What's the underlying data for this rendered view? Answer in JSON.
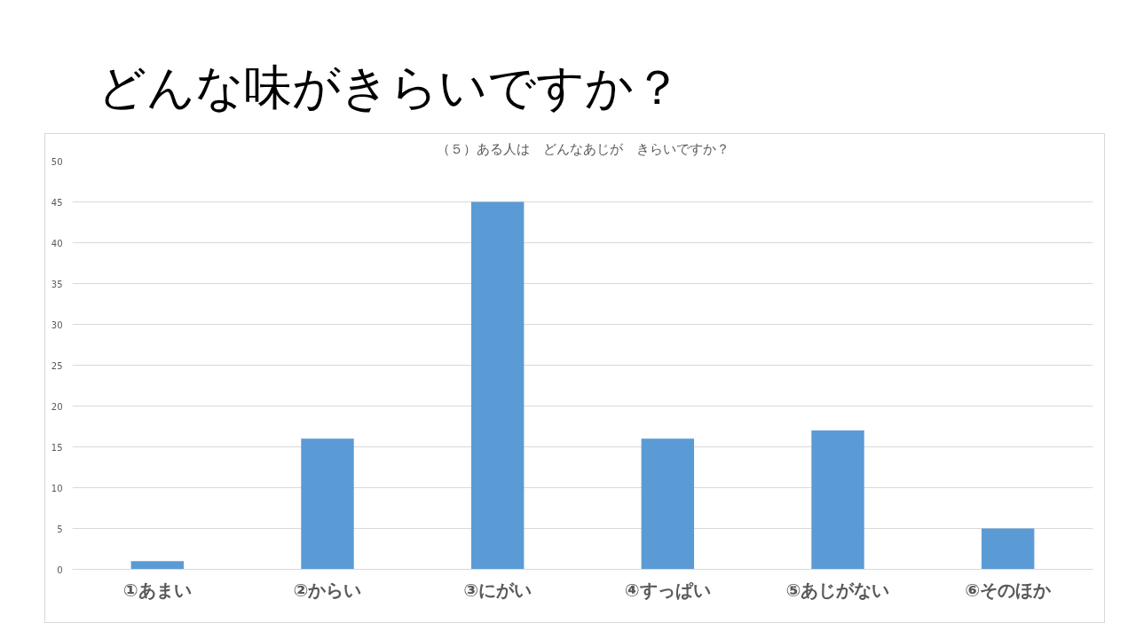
{
  "chart_data": {
    "type": "bar",
    "title": "どんな味がきらいですか？",
    "subtitle": "（５）ある人は　どんなあじが　きらいですか？",
    "categories": [
      "①あまい",
      "②からい",
      "③にがい",
      "④すっぱい",
      "⑤あじがない",
      "⑥そのほか"
    ],
    "values": [
      1,
      16,
      45,
      16,
      17,
      5
    ],
    "color": "#5b9bd5",
    "ylim": [
      0,
      50
    ],
    "yticks": [
      0,
      5,
      10,
      15,
      20,
      25,
      30,
      35,
      40,
      45,
      50
    ],
    "grid": "y"
  }
}
